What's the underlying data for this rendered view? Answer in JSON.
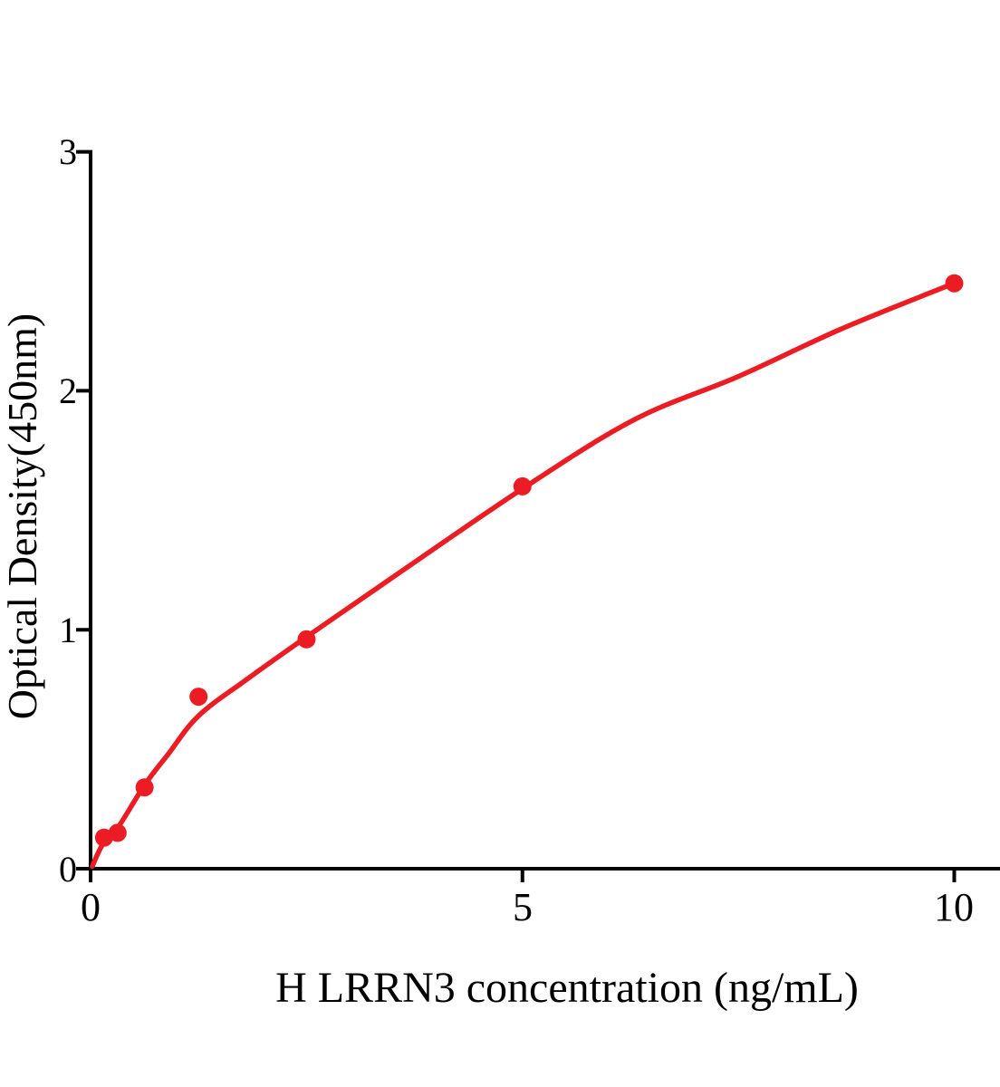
{
  "chart_data": {
    "type": "scatter",
    "title": "",
    "xlabel": "H LRRN3 concentration (ng/mL)",
    "ylabel": "Optical Density(450nm)",
    "xlim": [
      0,
      10.5
    ],
    "ylim": [
      0,
      3
    ],
    "x_ticks": [
      0,
      5,
      10
    ],
    "y_ticks": [
      0,
      1,
      2,
      3
    ],
    "grid": false,
    "legend": false,
    "colors": {
      "curve": "#ec1c24",
      "points": "#ec1c24",
      "axis": "#000000",
      "text": "#000000"
    },
    "series": [
      {
        "name": "standard-points",
        "type": "scatter",
        "marker": "circle",
        "x": [
          0.156,
          0.313,
          0.625,
          1.25,
          2.5,
          5,
          10
        ],
        "y": [
          0.13,
          0.15,
          0.34,
          0.72,
          0.96,
          1.6,
          2.45
        ]
      },
      {
        "name": "fitted-curve",
        "type": "line",
        "fit_model": "power-like smooth fit",
        "curve_samples": [
          [
            0.02,
            0.01
          ],
          [
            0.08,
            0.06
          ],
          [
            0.156,
            0.11
          ],
          [
            0.313,
            0.17
          ],
          [
            0.625,
            0.35
          ],
          [
            0.9,
            0.48
          ],
          [
            1.25,
            0.64
          ],
          [
            1.8,
            0.79
          ],
          [
            2.5,
            0.97
          ],
          [
            3.5,
            1.22
          ],
          [
            5,
            1.59
          ],
          [
            6.3,
            1.88
          ],
          [
            7.5,
            2.06
          ],
          [
            8.7,
            2.26
          ],
          [
            10,
            2.45
          ]
        ]
      }
    ]
  }
}
